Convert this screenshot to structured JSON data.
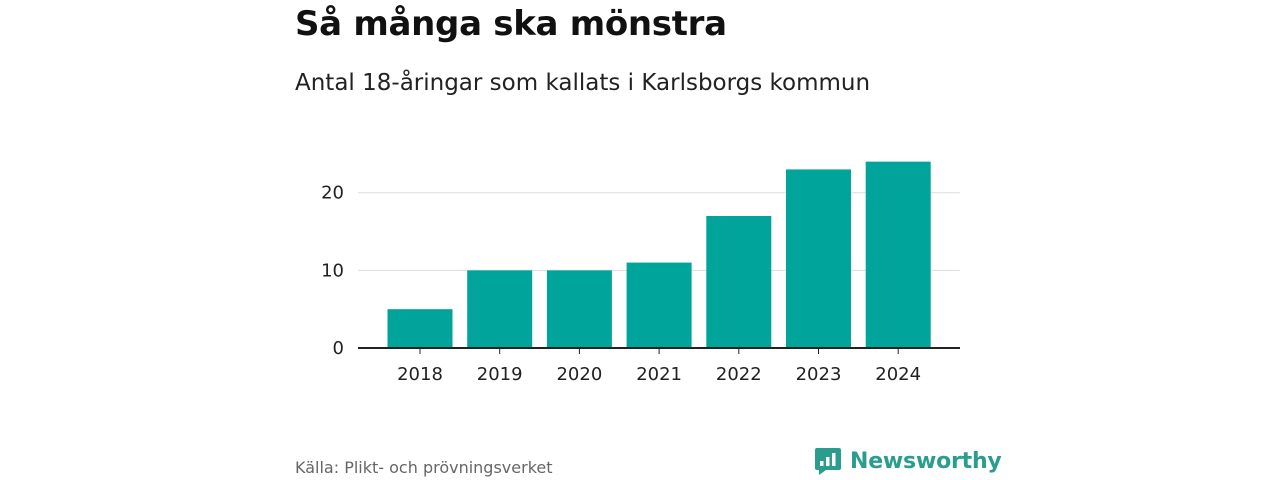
{
  "chart_data": {
    "type": "bar",
    "title": "Så många ska mönstra",
    "subtitle": "Antal 18-åringar som kallats i Karlsborgs kommun",
    "categories": [
      "2018",
      "2019",
      "2020",
      "2021",
      "2022",
      "2023",
      "2024"
    ],
    "values": [
      5,
      10,
      10,
      11,
      17,
      23,
      24
    ],
    "yticks": [
      0,
      10,
      20
    ],
    "ylim": [
      0,
      25.5
    ],
    "xlabel": "",
    "ylabel": "",
    "grid": true,
    "bar_color": "#00a49a"
  },
  "footer": {
    "source": "Källa: Plikt- och prövningsverket",
    "brand": "Newsworthy",
    "brand_icon": "newsworthy-logo-icon",
    "brand_color": "#2a9d8f"
  }
}
